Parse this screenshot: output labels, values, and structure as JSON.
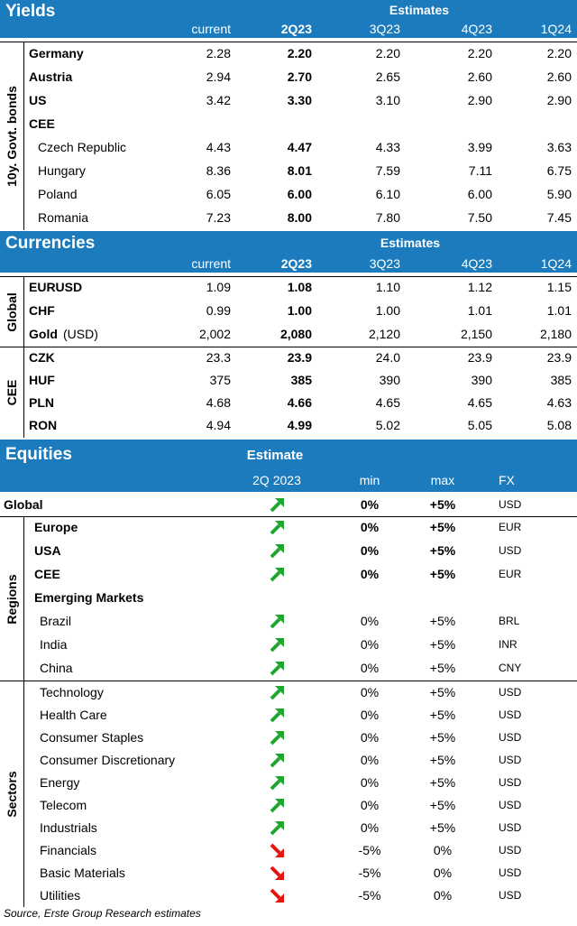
{
  "yields": {
    "title": "Yields",
    "estimates_label": "Estimates",
    "columns": [
      "current",
      "2Q23",
      "3Q23",
      "4Q23",
      "1Q24"
    ],
    "side_label": "10y. Govt. bonds",
    "rows": [
      {
        "label": "Germany",
        "values": [
          "2.28",
          "2.20",
          "2.20",
          "2.20",
          "2.20"
        ]
      },
      {
        "label": "Austria",
        "values": [
          "2.94",
          "2.70",
          "2.65",
          "2.60",
          "2.60"
        ]
      },
      {
        "label": "US",
        "values": [
          "3.42",
          "3.30",
          "3.10",
          "2.90",
          "2.90"
        ]
      },
      {
        "label": "CEE",
        "values": []
      },
      {
        "label": "Czech Republic",
        "values": [
          "4.43",
          "4.47",
          "4.33",
          "3.99",
          "3.63"
        ]
      },
      {
        "label": "Hungary",
        "values": [
          "8.36",
          "8.01",
          "7.59",
          "7.11",
          "6.75"
        ]
      },
      {
        "label": "Poland",
        "values": [
          "6.05",
          "6.00",
          "6.10",
          "6.00",
          "5.90"
        ]
      },
      {
        "label": "Romania",
        "values": [
          "7.23",
          "8.00",
          "7.80",
          "7.50",
          "7.45"
        ]
      }
    ]
  },
  "currencies": {
    "title": "Currencies",
    "estimates_label": "Estimates",
    "columns": [
      "current",
      "2Q23",
      "3Q23",
      "4Q23",
      "1Q24"
    ],
    "global_label": "Global",
    "cee_label": "CEE",
    "gold_suffix": "(USD)",
    "global_rows": [
      {
        "label": "EURUSD",
        "values": [
          "1.09",
          "1.08",
          "1.10",
          "1.12",
          "1.15"
        ]
      },
      {
        "label": "CHF",
        "values": [
          "0.99",
          "1.00",
          "1.00",
          "1.01",
          "1.01"
        ]
      },
      {
        "label": "Gold",
        "values": [
          "2,002",
          "2,080",
          "2,120",
          "2,150",
          "2,180"
        ]
      }
    ],
    "cee_rows": [
      {
        "label": "CZK",
        "values": [
          "23.3",
          "23.9",
          "24.0",
          "23.9",
          "23.9"
        ]
      },
      {
        "label": "HUF",
        "values": [
          "375",
          "385",
          "390",
          "390",
          "385"
        ]
      },
      {
        "label": "PLN",
        "values": [
          "4.68",
          "4.66",
          "4.65",
          "4.65",
          "4.63"
        ]
      },
      {
        "label": "RON",
        "values": [
          "4.94",
          "4.99",
          "5.02",
          "5.05",
          "5.08"
        ]
      }
    ]
  },
  "equities": {
    "title": "Equities",
    "estimate_label": "Estimate",
    "columns": {
      "period": "2Q 2023",
      "min": "min",
      "max": "max",
      "fx": "FX"
    },
    "regions_label": "Regions",
    "sectors_label": "Sectors",
    "global_row": {
      "label": "Global",
      "trend": "up",
      "min": "0%",
      "max": "+5%",
      "fx": "USD"
    },
    "regions": [
      {
        "label": "Europe",
        "trend": "up",
        "min": "0%",
        "max": "+5%",
        "fx": "EUR",
        "bold": true
      },
      {
        "label": "USA",
        "trend": "up",
        "min": "0%",
        "max": "+5%",
        "fx": "USD",
        "bold": true
      },
      {
        "label": "CEE",
        "trend": "up",
        "min": "0%",
        "max": "+5%",
        "fx": "EUR",
        "bold": true
      },
      {
        "label": "Emerging Markets",
        "trend": "",
        "min": "",
        "max": "",
        "fx": "",
        "bold": true
      },
      {
        "label": "Brazil",
        "trend": "up",
        "min": "0%",
        "max": "+5%",
        "fx": "BRL",
        "bold": false
      },
      {
        "label": "India",
        "trend": "up",
        "min": "0%",
        "max": "+5%",
        "fx": "INR",
        "bold": false
      },
      {
        "label": "China",
        "trend": "up",
        "min": "0%",
        "max": "+5%",
        "fx": "CNY",
        "bold": false
      }
    ],
    "sectors": [
      {
        "label": "Technology",
        "trend": "up",
        "min": "0%",
        "max": "+5%",
        "fx": "USD"
      },
      {
        "label": "Health Care",
        "trend": "up",
        "min": "0%",
        "max": "+5%",
        "fx": "USD"
      },
      {
        "label": "Consumer Staples",
        "trend": "up",
        "min": "0%",
        "max": "+5%",
        "fx": "USD"
      },
      {
        "label": "Consumer Discretionary",
        "trend": "up",
        "min": "0%",
        "max": "+5%",
        "fx": "USD"
      },
      {
        "label": "Energy",
        "trend": "up",
        "min": "0%",
        "max": "+5%",
        "fx": "USD"
      },
      {
        "label": "Telecom",
        "trend": "up",
        "min": "0%",
        "max": "+5%",
        "fx": "USD"
      },
      {
        "label": "Industrials",
        "trend": "up",
        "min": "0%",
        "max": "+5%",
        "fx": "USD"
      },
      {
        "label": "Financials",
        "trend": "down",
        "min": "-5%",
        "max": "0%",
        "fx": "USD"
      },
      {
        "label": "Basic Materials",
        "trend": "down",
        "min": "-5%",
        "max": "0%",
        "fx": "USD"
      },
      {
        "label": "Utilities",
        "trend": "down",
        "min": "-5%",
        "max": "0%",
        "fx": "USD"
      }
    ]
  },
  "colors": {
    "header_blue": "#1c7bbd",
    "up_arrow": "#1fa62e",
    "down_arrow": "#e3150f"
  },
  "source": "Source, Erste Group Research estimates"
}
